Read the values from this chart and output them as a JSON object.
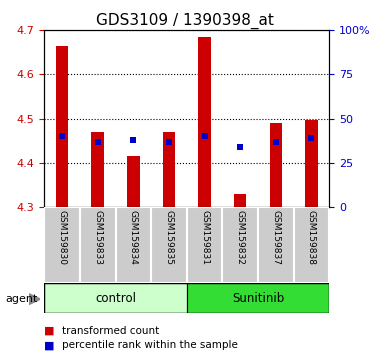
{
  "title": "GDS3109 / 1390398_at",
  "samples": [
    "GSM159830",
    "GSM159833",
    "GSM159834",
    "GSM159835",
    "GSM159831",
    "GSM159832",
    "GSM159837",
    "GSM159838"
  ],
  "red_values": [
    4.665,
    4.47,
    4.415,
    4.47,
    4.685,
    4.33,
    4.49,
    4.497
  ],
  "blue_values": [
    4.46,
    4.448,
    4.452,
    4.448,
    4.46,
    4.436,
    4.448,
    4.457
  ],
  "ymin": 4.3,
  "ymax": 4.7,
  "y_ticks": [
    4.3,
    4.4,
    4.5,
    4.6,
    4.7
  ],
  "y2_ticks": [
    0,
    25,
    50,
    75,
    100
  ],
  "y2_tick_labels": [
    "0",
    "25",
    "50",
    "75",
    "100%"
  ],
  "red_color": "#cc0000",
  "blue_color": "#0000cc",
  "control_bg": "#ccffcc",
  "sunitinib_bg": "#33dd33",
  "sample_bg": "#cccccc",
  "bar_width": 0.35,
  "legend_red_label": "transformed count",
  "legend_blue_label": "percentile rank within the sample",
  "agent_label": "agent",
  "group_labels": [
    "control",
    "Sunitinib"
  ],
  "title_fontsize": 11,
  "tick_fontsize": 8,
  "sample_fontsize": 6.5,
  "legend_fontsize": 7.5
}
